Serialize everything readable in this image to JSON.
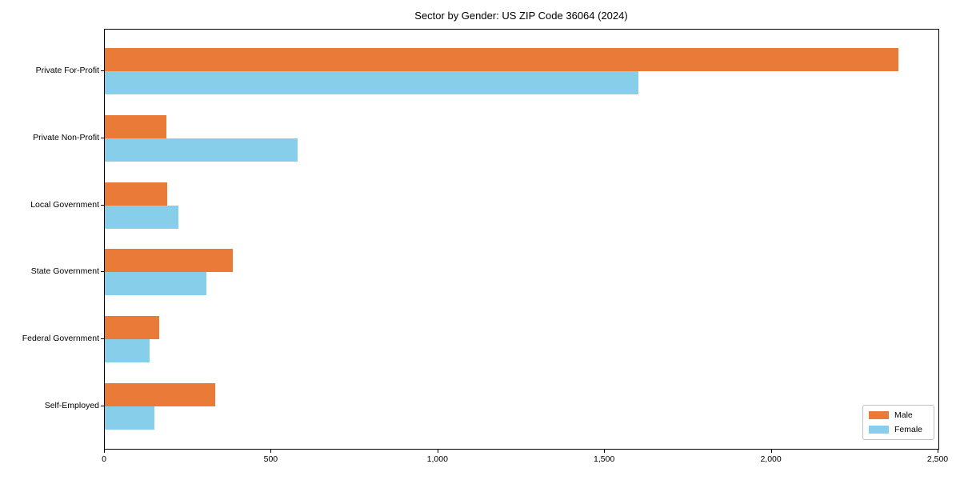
{
  "title": "Sector by Gender: US ZIP Code 36064 (2024)",
  "colors": {
    "male": "#EA7A38",
    "female": "#87CEEB",
    "axis": "#000000",
    "background": "#FFFFFF",
    "legend_border": "#C0C0C0"
  },
  "legend": {
    "position": "lower right",
    "items": [
      {
        "label": "Male"
      },
      {
        "label": "Female"
      }
    ]
  },
  "chart_data": {
    "type": "bar",
    "orientation": "horizontal",
    "title": "Sector by Gender: US ZIP Code 36064 (2024)",
    "categories": [
      "Private For-Profit",
      "Private Non-Profit",
      "Local Government",
      "State Government",
      "Federal Government",
      "Self-Employed"
    ],
    "series": [
      {
        "name": "Male",
        "color": "#EA7A38",
        "values": [
          2380,
          185,
          188,
          385,
          163,
          332
        ]
      },
      {
        "name": "Female",
        "color": "#87CEEB",
        "values": [
          1600,
          578,
          220,
          304,
          134,
          148
        ]
      }
    ],
    "xlabel": "",
    "ylabel": "",
    "xlim": [
      0,
      2500
    ],
    "x_ticks": [
      0,
      500,
      1000,
      1500,
      2000,
      2500
    ],
    "x_tick_labels": [
      "0",
      "500",
      "1,000",
      "1,500",
      "2,000",
      "2,500"
    ],
    "grid": false,
    "legend_position": "lower right"
  }
}
